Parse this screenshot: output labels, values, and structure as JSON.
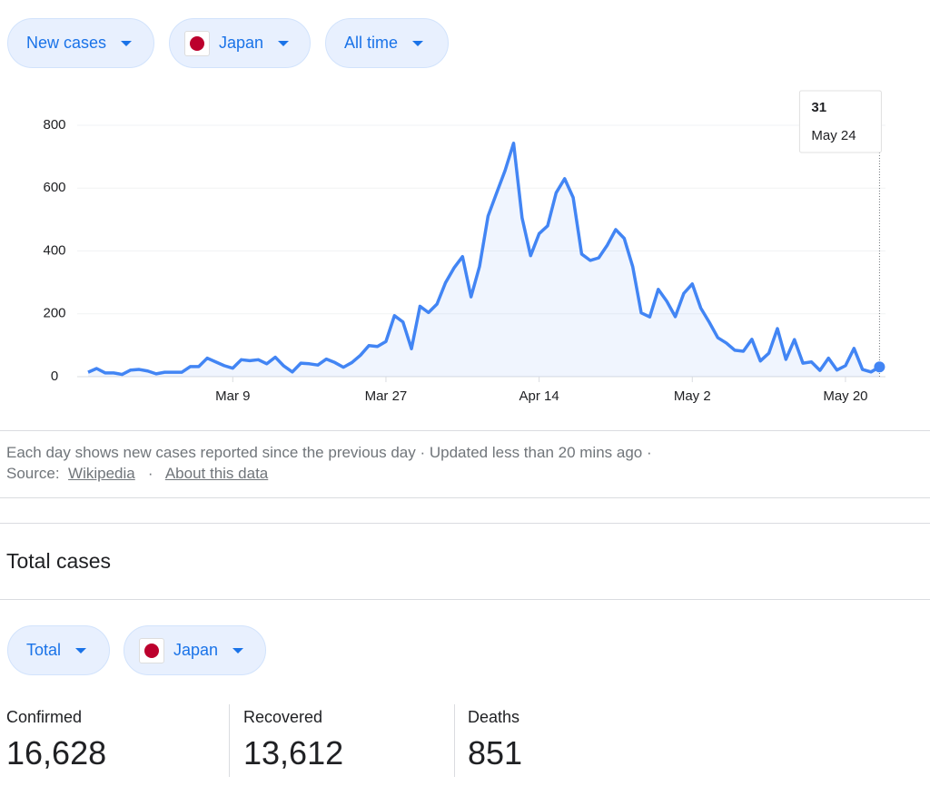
{
  "controls": {
    "metric": "New cases",
    "country": "Japan",
    "period": "All time"
  },
  "chart_data": {
    "type": "line",
    "categories": [
      null,
      null,
      null,
      null,
      null,
      null,
      null,
      null,
      null,
      null,
      null,
      null,
      null,
      null,
      null,
      null,
      null,
      "Mar 9",
      null,
      null,
      null,
      null,
      null,
      null,
      null,
      null,
      null,
      null,
      null,
      null,
      null,
      null,
      null,
      null,
      null,
      "Mar 27",
      null,
      null,
      null,
      null,
      null,
      null,
      null,
      null,
      null,
      null,
      null,
      null,
      null,
      null,
      null,
      null,
      null,
      "Apr 14",
      null,
      null,
      null,
      null,
      null,
      null,
      null,
      null,
      null,
      null,
      null,
      null,
      null,
      null,
      null,
      null,
      null,
      "May 2",
      null,
      null,
      null,
      null,
      null,
      null,
      null,
      null,
      null,
      null,
      null,
      null,
      null,
      null,
      null,
      null,
      null,
      "May 20",
      null,
      null,
      null,
      null
    ],
    "series": [
      {
        "name": "New cases",
        "color": "#4285f4",
        "values": [
          14,
          26,
          12,
          12,
          7,
          21,
          23,
          18,
          9,
          14,
          14,
          14,
          32,
          32,
          59,
          47,
          35,
          27,
          54,
          51,
          54,
          41,
          62,
          34,
          15,
          43,
          41,
          37,
          56,
          45,
          30,
          45,
          68,
          99,
          96,
          112,
          194,
          174,
          89,
          224,
          204,
          231,
          299,
          346,
          382,
          254,
          351,
          511,
          584,
          656,
          743,
          505,
          385,
          455,
          480,
          585,
          630,
          570,
          390,
          370,
          378,
          418,
          468,
          440,
          350,
          203,
          190,
          278,
          240,
          191,
          265,
          295,
          218,
          173,
          124,
          107,
          84,
          81,
          119,
          50,
          75,
          153,
          55,
          118,
          43,
          47,
          20,
          59,
          21,
          35,
          90,
          23,
          15,
          31
        ]
      }
    ],
    "ylim": [
      0,
      800
    ],
    "yticks": [
      0,
      200,
      400,
      600,
      800
    ],
    "grid": true,
    "tooltip": {
      "value": 31,
      "date": "May 24"
    }
  },
  "notes": {
    "text": "Each day shows new cases reported since the previous day · Updated less than 20 mins ago ·",
    "source_label": "Source:",
    "source_link": "Wikipedia",
    "separator": "·",
    "about_link": "About this data"
  },
  "totals": {
    "heading": "Total cases",
    "controls": {
      "metric": "Total",
      "country": "Japan"
    },
    "stats": [
      {
        "label": "Confirmed",
        "value": "16,628"
      },
      {
        "label": "Recovered",
        "value": "13,612"
      },
      {
        "label": "Deaths",
        "value": "851"
      }
    ]
  }
}
